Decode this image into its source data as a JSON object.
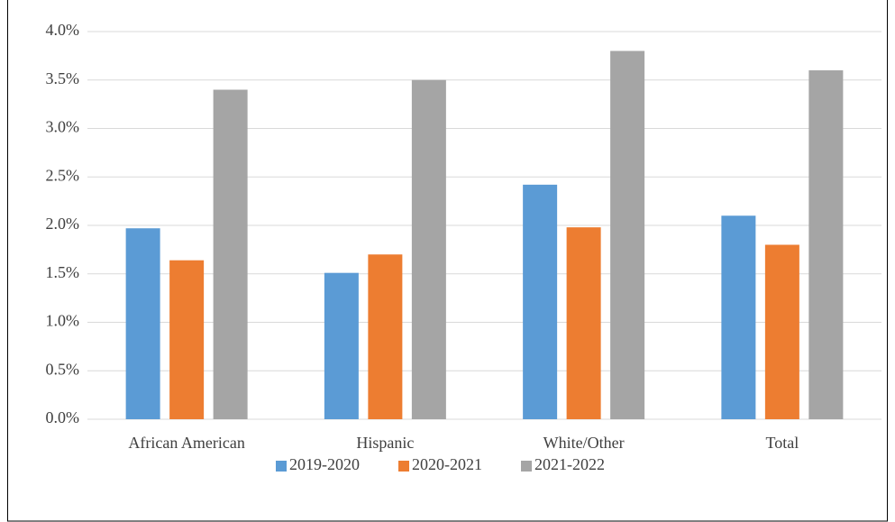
{
  "chart_data": {
    "type": "bar",
    "categories": [
      "African American",
      "Hispanic",
      "White/Other",
      "Total"
    ],
    "series": [
      {
        "name": "2019-2020",
        "color": "#5b9bd5",
        "values": [
          1.97,
          1.51,
          2.42,
          2.1
        ]
      },
      {
        "name": "2020-2021",
        "color": "#ed7d31",
        "values": [
          1.64,
          1.7,
          1.98,
          1.8
        ]
      },
      {
        "name": "2021-2022",
        "color": "#a5a5a5",
        "values": [
          3.4,
          3.5,
          3.8,
          3.6
        ]
      }
    ],
    "ylim": [
      0,
      4
    ],
    "yticks": [
      {
        "value": 0,
        "label": "0.0%"
      },
      {
        "value": 0.5,
        "label": "0.5%"
      },
      {
        "value": 1,
        "label": "1.0%"
      },
      {
        "value": 1.5,
        "label": "1.5%"
      },
      {
        "value": 2,
        "label": "2.0%"
      },
      {
        "value": 2.5,
        "label": "2.5%"
      },
      {
        "value": 3,
        "label": "3.0%"
      },
      {
        "value": 3.5,
        "label": "3.5%"
      },
      {
        "value": 4,
        "label": "4.0%"
      }
    ],
    "grid": true,
    "legend": "bottom"
  }
}
